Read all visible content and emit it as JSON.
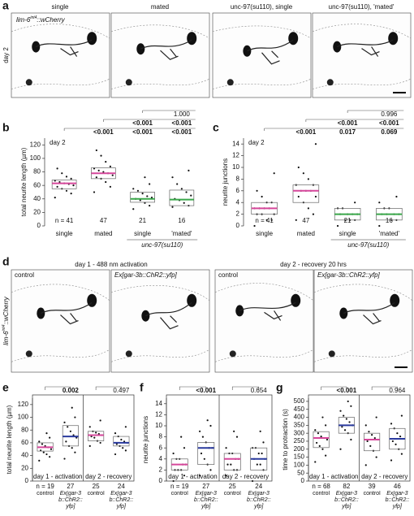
{
  "figure": {
    "panel_labels": [
      "a",
      "b",
      "c",
      "d",
      "e",
      "f",
      "g"
    ],
    "reporter": {
      "gene": "lim-6",
      "allele": "int4",
      "suffix": "::wCherry"
    },
    "a": {
      "row_label": "day 2",
      "titles": [
        "single",
        "mated",
        "unc-97(su110), single",
        "unc-97(su110), 'mated'"
      ]
    },
    "d": {
      "conditions": [
        "day 1 - 488 nm activation",
        "day 2 - recovery 20 hrs"
      ],
      "image_labels": [
        "control",
        "Ex[gar-3b::ChR2::yfp]",
        "control",
        "Ex[gar-3b::ChR2::yfp]"
      ]
    }
  },
  "chart_data": [
    {
      "type": "box",
      "ylabel": "total neurite length (µm)",
      "annotation": "day 2",
      "ylim": [
        0,
        130
      ],
      "yticks": [
        0,
        20,
        40,
        60,
        80,
        100,
        120
      ],
      "categories": [
        "single",
        "mated",
        "single",
        "'mated'"
      ],
      "group_label": "unc-97(su110)",
      "n_labels": [
        "n = 41",
        "47",
        "21",
        "16"
      ],
      "q1": [
        55,
        70,
        35,
        30
      ],
      "median": [
        63,
        78,
        40,
        39
      ],
      "q3": [
        68,
        86,
        50,
        53
      ],
      "median_colors": [
        "#d6479b",
        "#d6479b",
        "#3aa84a",
        "#3aa84a"
      ],
      "points": [
        [
          42,
          48,
          52,
          55,
          58,
          60,
          62,
          63,
          65,
          67,
          70,
          73,
          78,
          85
        ],
        [
          50,
          58,
          65,
          70,
          72,
          75,
          78,
          80,
          82,
          85,
          88,
          95,
          104,
          112
        ],
        [
          25,
          30,
          34,
          38,
          40,
          42,
          44,
          48,
          52,
          55,
          62,
          72
        ],
        [
          28,
          30,
          34,
          38,
          40,
          45,
          50,
          55,
          62,
          72,
          82
        ]
      ],
      "p_values": [
        [
          "<0.001",
          "<0.001",
          "<0.001"
        ],
        [
          "<0.001",
          "<0.001"
        ],
        [
          "1.000"
        ]
      ]
    },
    {
      "type": "box",
      "ylabel": "neurite junctions",
      "annotation": "day 2",
      "ylim": [
        0,
        15
      ],
      "yticks": [
        0,
        2,
        4,
        6,
        8,
        10,
        12,
        14
      ],
      "categories": [
        "single",
        "mated",
        "single",
        "'mated'"
      ],
      "group_label": "unc-97(su110)",
      "n_labels": [
        "n = 41",
        "47",
        "21",
        "16"
      ],
      "q1": [
        2,
        4,
        1,
        1
      ],
      "median": [
        3,
        6,
        2,
        2
      ],
      "q3": [
        4,
        7,
        3,
        3
      ],
      "median_colors": [
        "#d6479b",
        "#d6479b",
        "#3aa84a",
        "#3aa84a"
      ],
      "points": [
        [
          0,
          1,
          1,
          2,
          2,
          2,
          3,
          3,
          3,
          3,
          4,
          4,
          5,
          6,
          9
        ],
        [
          1,
          2,
          3,
          4,
          5,
          5,
          6,
          6,
          6,
          7,
          7,
          8,
          9,
          10,
          14
        ],
        [
          0,
          1,
          1,
          1,
          2,
          2,
          2,
          2,
          3,
          3,
          4
        ],
        [
          0,
          1,
          1,
          2,
          2,
          2,
          2,
          3,
          3,
          4,
          5
        ]
      ],
      "p_values": [
        [
          "<0.001",
          "0.017",
          "0.069"
        ],
        [
          "<0.001",
          "<0.001"
        ],
        [
          "0.996"
        ]
      ]
    },
    {
      "type": "box",
      "ylabel": "total neurite length (µm)",
      "ylim": [
        0,
        130
      ],
      "yticks": [
        0,
        20,
        40,
        60,
        80,
        100,
        120
      ],
      "categories": [
        "control",
        "Ex[gar-3b::ChR2::yfp]",
        "control",
        "Ex[gar-3b::ChR2::yfp]"
      ],
      "period_labels": [
        "day 1 - activation",
        "day 2 - recovery"
      ],
      "n_labels": [
        "n = 19",
        "27",
        "25",
        "24"
      ],
      "q1": [
        47,
        55,
        63,
        55
      ],
      "median": [
        53,
        70,
        72,
        60
      ],
      "q3": [
        60,
        87,
        78,
        70
      ],
      "median_colors": [
        "#d6479b",
        "#2a3a9e",
        "#d6479b",
        "#2a3a9e"
      ],
      "points": [
        [
          32,
          38,
          42,
          45,
          48,
          50,
          53,
          55,
          58,
          62,
          68,
          75
        ],
        [
          35,
          45,
          52,
          55,
          62,
          68,
          72,
          78,
          85,
          92,
          100,
          115
        ],
        [
          55,
          60,
          63,
          68,
          70,
          72,
          74,
          76,
          78,
          85,
          95
        ],
        [
          42,
          48,
          52,
          55,
          58,
          60,
          62,
          65,
          70,
          75,
          85
        ]
      ],
      "p_values": [
        "0.002",
        "0.497"
      ]
    },
    {
      "type": "box",
      "ylabel": "neurite junctions",
      "ylim": [
        0,
        15
      ],
      "yticks": [
        0,
        2,
        4,
        6,
        8,
        10,
        12,
        14
      ],
      "categories": [
        "control",
        "Ex[gar-3b::ChR2::yfp]",
        "control",
        "Ex[gar-3b::ChR2::yfp]"
      ],
      "period_labels": [
        "day 1 - activation",
        "day 2 - recovery"
      ],
      "n_labels": [
        "n = 19",
        "27",
        "25",
        "24"
      ],
      "q1": [
        2,
        3,
        2,
        2
      ],
      "median": [
        3,
        6,
        4,
        4
      ],
      "q3": [
        4,
        7,
        5,
        6
      ],
      "median_colors": [
        "#d6479b",
        "#2a3a9e",
        "#d6479b",
        "#2a3a9e"
      ],
      "points": [
        [
          0,
          1,
          2,
          2,
          2,
          3,
          3,
          4,
          4,
          5,
          6,
          8
        ],
        [
          1,
          2,
          3,
          4,
          5,
          6,
          6,
          7,
          8,
          9,
          10,
          11
        ],
        [
          1,
          2,
          2,
          3,
          3,
          4,
          4,
          5,
          5,
          6,
          8,
          9
        ],
        [
          0,
          2,
          3,
          3,
          4,
          4,
          5,
          5,
          6,
          6,
          7,
          9
        ]
      ],
      "p_values": [
        "<0.001",
        "0.654"
      ]
    },
    {
      "type": "box",
      "ylabel": "time to protraction (s)",
      "ylim": [
        0,
        520
      ],
      "yticks": [
        0,
        50,
        100,
        150,
        200,
        250,
        300,
        350,
        400,
        450,
        500
      ],
      "categories": [
        "control",
        "Ex[gar-3b::ChR2::yfp]",
        "control",
        "Ex[gar-3b::ChR2::yfp]"
      ],
      "period_labels": [
        "day 1 - activation",
        "day 2 - recovery"
      ],
      "n_labels": [
        "n = 68",
        "82",
        "39",
        "46"
      ],
      "q1": [
        210,
        300,
        190,
        200
      ],
      "median": [
        270,
        350,
        260,
        265
      ],
      "q3": [
        310,
        400,
        300,
        330
      ],
      "median_colors": [
        "#d6479b",
        "#2a3a9e",
        "#d6479b",
        "#2a3a9e"
      ],
      "points": [
        [
          120,
          160,
          200,
          220,
          240,
          260,
          270,
          280,
          300,
          320,
          350,
          400
        ],
        [
          200,
          260,
          300,
          320,
          340,
          350,
          370,
          390,
          410,
          440,
          470,
          500
        ],
        [
          100,
          150,
          190,
          220,
          250,
          260,
          270,
          290,
          310,
          350,
          400
        ],
        [
          130,
          170,
          200,
          230,
          250,
          265,
          280,
          300,
          330,
          360,
          410
        ]
      ],
      "p_values": [
        "<0.001",
        "0.964"
      ]
    }
  ]
}
